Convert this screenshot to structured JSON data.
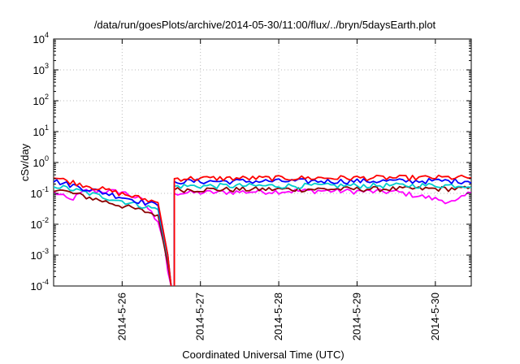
{
  "chart_data": {
    "type": "line",
    "title": "/data/run/goesPlots/archive/2014-05-30/11:00/flux/../bryn/5daysEarth.plot",
    "xlabel": "Coordinated Universal Time (UTC)",
    "ylabel": "cSv/day",
    "yscale": "log",
    "ylim": [
      0.0001,
      10000
    ],
    "xlim": [
      "2014-05-25 03:00",
      "2014-05-30 11:00"
    ],
    "grid": true,
    "x_ticks": [
      "2014-5-26",
      "2014-5-27",
      "2014-5-28",
      "2014-5-29",
      "2014-5-30"
    ],
    "y_ticks": [
      {
        "value": 0.0001,
        "base": "10",
        "exp": "-4"
      },
      {
        "value": 0.001,
        "base": "10",
        "exp": "-3"
      },
      {
        "value": 0.01,
        "base": "10",
        "exp": "-2"
      },
      {
        "value": 0.1,
        "base": "10",
        "exp": "-1"
      },
      {
        "value": 1,
        "base": "10",
        "exp": "0"
      },
      {
        "value": 10,
        "base": "10",
        "exp": "1"
      },
      {
        "value": 100,
        "base": "10",
        "exp": "2"
      },
      {
        "value": 1000,
        "base": "10",
        "exp": "3"
      },
      {
        "value": 10000,
        "base": "10",
        "exp": "4"
      }
    ],
    "dropout": {
      "start": "2014-05-26 14:00",
      "end": "2014-05-26 16:00"
    },
    "series": [
      {
        "color": "#ff00ff",
        "baseline": 0.11,
        "values": [
          [
            "2014-05-25 03:00",
            0.11
          ],
          [
            "2014-05-25 08:00",
            0.06
          ],
          [
            "2014-05-25 13:00",
            0.12
          ],
          [
            "2014-05-26 00:00",
            0.11
          ],
          [
            "2014-05-26 06:00",
            0.06
          ],
          [
            "2014-05-26 11:00",
            0.012
          ],
          [
            "2014-05-26 13:00",
            0.002
          ],
          [
            "2014-05-26 14:00",
            0.0003
          ],
          [
            "2014-05-26 15:00",
            0.0001
          ],
          [
            "2014-05-26 16:00",
            0.1
          ],
          [
            "2014-05-27 12:00",
            0.11
          ],
          [
            "2014-05-28 12:00",
            0.12
          ],
          [
            "2014-05-29 12:00",
            0.11
          ],
          [
            "2014-05-30 06:00",
            0.05
          ],
          [
            "2014-05-30 11:00",
            0.11
          ]
        ]
      },
      {
        "color": "#8b0000",
        "baseline": 0.14,
        "values": [
          [
            "2014-05-25 03:00",
            0.14
          ],
          [
            "2014-05-26 11:00",
            0.02
          ],
          [
            "2014-05-26 14:00",
            0.0005
          ],
          [
            "2014-05-26 15:00",
            0.0001
          ],
          [
            "2014-05-26 16:00",
            0.13
          ],
          [
            "2014-05-30 11:00",
            0.14
          ]
        ]
      },
      {
        "color": "#00cccc",
        "baseline": 0.18,
        "values": [
          [
            "2014-05-25 03:00",
            0.18
          ],
          [
            "2014-05-26 11:00",
            0.03
          ],
          [
            "2014-05-26 14:00",
            0.0008
          ],
          [
            "2014-05-26 15:00",
            0.0001
          ],
          [
            "2014-05-26 16:00",
            0.17
          ],
          [
            "2014-05-30 11:00",
            0.18
          ]
        ]
      },
      {
        "color": "#0000ff",
        "baseline": 0.25,
        "values": [
          [
            "2014-05-25 03:00",
            0.25
          ],
          [
            "2014-05-26 11:00",
            0.04
          ],
          [
            "2014-05-26 14:00",
            0.001
          ],
          [
            "2014-05-26 15:00",
            0.0001
          ],
          [
            "2014-05-26 16:00",
            0.24
          ],
          [
            "2014-05-30 11:00",
            0.25
          ]
        ]
      },
      {
        "color": "#ff0000",
        "baseline": 0.32,
        "values": [
          [
            "2014-05-25 03:00",
            0.32
          ],
          [
            "2014-05-26 11:00",
            0.05
          ],
          [
            "2014-05-26 14:00",
            0.001
          ],
          [
            "2014-05-26 15:00",
            0.0001
          ],
          [
            "2014-05-26 16:00",
            0.3
          ],
          [
            "2014-05-30 11:00",
            0.32
          ]
        ]
      }
    ]
  }
}
